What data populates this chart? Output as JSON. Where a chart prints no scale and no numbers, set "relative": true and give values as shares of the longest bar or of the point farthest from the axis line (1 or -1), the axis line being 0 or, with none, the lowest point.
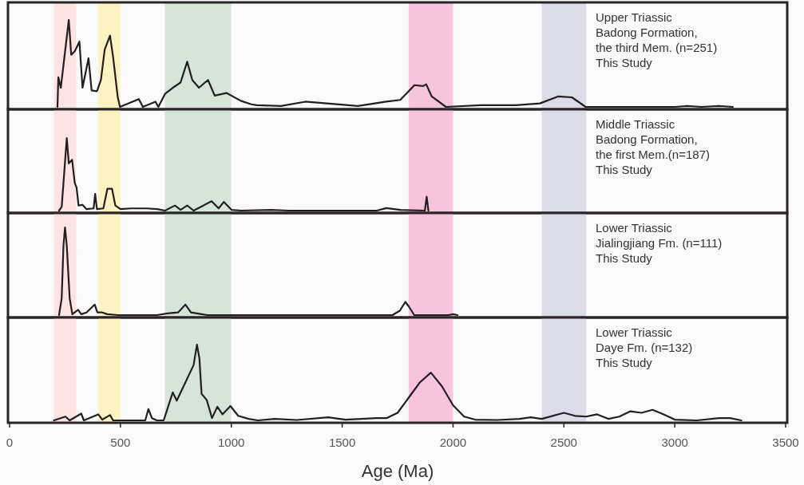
{
  "chart_data": [
    {
      "type": "line",
      "relative": true,
      "xlim": [
        0,
        3500
      ],
      "tick_labels": false,
      "annotations": [
        "Upper Triassic\nBadong Formation,\nthe third Mem. (n=251)\nThis Study"
      ],
      "bands": [
        {
          "axis": "x",
          "from": 200,
          "to": 300,
          "color": "#fde3e3"
        },
        {
          "axis": "x",
          "from": 400,
          "to": 500,
          "color": "#fdf3c2"
        },
        {
          "axis": "x",
          "from": 700,
          "to": 1000,
          "color": "#d5e5da"
        },
        {
          "axis": "x",
          "from": 1800,
          "to": 2000,
          "color": "#f8c3dc"
        },
        {
          "axis": "x",
          "from": 2400,
          "to": 2600,
          "color": "#dcdbe8"
        }
      ],
      "series": [
        {
          "color": "#231f20",
          "x": [
            216,
            220,
            231,
            267,
            278,
            294,
            315,
            329,
            356,
            370,
            394,
            412,
            429,
            453,
            467,
            488,
            498,
            583,
            601,
            658,
            671,
            701,
            736,
            771,
            801,
            824,
            854,
            895,
            925,
            978,
            1043,
            1090,
            1115,
            1224,
            1334,
            1571,
            1699,
            1762,
            1826,
            1865,
            1879,
            1904,
            1968,
            2125,
            2283,
            2392,
            2473,
            2536,
            2598,
            3000,
            3057,
            3120,
            3199,
            3262
          ],
          "values": [
            0,
            0.34,
            0.22,
            1.0,
            0.6,
            0.64,
            0.75,
            0.22,
            0.56,
            0.19,
            0.18,
            0.31,
            0.66,
            0.82,
            0.57,
            0.11,
            0,
            0.09,
            0,
            0.06,
            0,
            0.15,
            0.22,
            0.28,
            0.52,
            0.31,
            0.22,
            0.31,
            0.13,
            0.16,
            0.07,
            0.03,
            0.02,
            0.01,
            0.06,
            0.01,
            0.06,
            0.08,
            0.25,
            0.24,
            0.26,
            0.12,
            0,
            0.02,
            0.02,
            0.04,
            0.12,
            0.11,
            0,
            0,
            0.01,
            0,
            0.01,
            0
          ]
        }
      ]
    },
    {
      "type": "line",
      "relative": true,
      "xlim": [
        0,
        3500
      ],
      "tick_labels": false,
      "annotations": [
        "Middle Triassic\nBadong Formation,\nthe first Mem.(n=187)\nThis Study"
      ],
      "bands": [
        {
          "axis": "x",
          "from": 200,
          "to": 300,
          "color": "#fde3e3"
        },
        {
          "axis": "x",
          "from": 400,
          "to": 500,
          "color": "#fdf3c2"
        },
        {
          "axis": "x",
          "from": 700,
          "to": 1000,
          "color": "#d5e5da"
        },
        {
          "axis": "x",
          "from": 1800,
          "to": 2000,
          "color": "#f8c3dc"
        },
        {
          "axis": "x",
          "from": 2400,
          "to": 2600,
          "color": "#dcdbe8"
        }
      ],
      "series": [
        {
          "color": "#231f20",
          "x": [
            223,
            235,
            250,
            258,
            267,
            282,
            294,
            302,
            311,
            329,
            347,
            379,
            386,
            394,
            423,
            441,
            462,
            477,
            500,
            547,
            618,
            665,
            701,
            746,
            771,
            801,
            830,
            911,
            943,
            966,
            1001,
            1043,
            1178,
            1258,
            1656,
            1699,
            1762,
            1873,
            1881,
            1889
          ],
          "values": [
            0,
            0.05,
            0.67,
            1.0,
            0.65,
            0.7,
            0.38,
            0.32,
            0.07,
            0.08,
            0.02,
            0.03,
            0.23,
            0.02,
            0.03,
            0.3,
            0.3,
            0.07,
            0.02,
            0.03,
            0.03,
            0.02,
            0,
            0.07,
            0.01,
            0.07,
            0,
            0.13,
            0.03,
            0.12,
            0.01,
            0,
            0.01,
            0,
            0,
            0.035,
            0.01,
            0,
            0.19,
            0
          ]
        }
      ]
    },
    {
      "type": "line",
      "relative": true,
      "xlim": [
        0,
        3500
      ],
      "tick_labels": false,
      "annotations": [
        "Lower Triassic\nJialingjiang Fm. (n=111)\nThis Study"
      ],
      "bands": [
        {
          "axis": "x",
          "from": 200,
          "to": 300,
          "color": "#fde3e3"
        },
        {
          "axis": "x",
          "from": 400,
          "to": 500,
          "color": "#fdf3c2"
        },
        {
          "axis": "x",
          "from": 700,
          "to": 1000,
          "color": "#d5e5da"
        },
        {
          "axis": "x",
          "from": 1800,
          "to": 2000,
          "color": "#f8c3dc"
        },
        {
          "axis": "x",
          "from": 2400,
          "to": 2600,
          "color": "#dcdbe8"
        }
      ],
      "series": [
        {
          "color": "#231f20",
          "x": [
            223,
            235,
            243,
            250,
            258,
            271,
            283,
            309,
            323,
            347,
            384,
            396,
            418,
            441,
            488,
            665,
            712,
            760,
            793,
            818,
            866,
            892,
            1727,
            1760,
            1785,
            1800,
            1825,
            1980,
            2000,
            2020
          ],
          "values": [
            0,
            0.19,
            0.79,
            1.0,
            0.79,
            0.19,
            0.01,
            0.06,
            0.01,
            0.03,
            0.12,
            0.03,
            0.03,
            0.01,
            0,
            0,
            0.02,
            0.03,
            0.12,
            0.03,
            0.01,
            0,
            0,
            0.05,
            0.15,
            0.1,
            0,
            0,
            0.01,
            0
          ]
        }
      ]
    },
    {
      "type": "line",
      "relative": true,
      "xlim": [
        0,
        3500
      ],
      "tick_labels": "x",
      "xticks": [
        0,
        500,
        1000,
        1500,
        2000,
        2500,
        3000,
        3500
      ],
      "xlabel": "Age (Ma)",
      "annotations": [
        "Lower Triassic\nDaye Fm. (n=132)\nThis Study"
      ],
      "bands": [
        {
          "axis": "x",
          "from": 200,
          "to": 300,
          "color": "#fde3e3"
        },
        {
          "axis": "x",
          "from": 400,
          "to": 500,
          "color": "#fdf3c2"
        },
        {
          "axis": "x",
          "from": 700,
          "to": 1000,
          "color": "#d5e5da"
        },
        {
          "axis": "x",
          "from": 1800,
          "to": 2000,
          "color": "#f8c3dc"
        },
        {
          "axis": "x",
          "from": 2400,
          "to": 2600,
          "color": "#dcdbe8"
        }
      ],
      "series": [
        {
          "color": "#231f20",
          "x": [
            200,
            252,
            271,
            323,
            335,
            400,
            418,
            453,
            467,
            612,
            626,
            642,
            665,
            695,
            736,
            754,
            830,
            845,
            856,
            866,
            889,
            913,
            937,
            960,
            996,
            1031,
            1078,
            1120,
            1196,
            1295,
            1437,
            1515,
            1656,
            1700,
            1750,
            1800,
            1850,
            1900,
            1950,
            2000,
            2050,
            2100,
            2200,
            2300,
            2350,
            2400,
            2500,
            2550,
            2600,
            2650,
            2700,
            2750,
            2800,
            2850,
            2900,
            2950,
            3000,
            3100,
            3200,
            3250,
            3300
          ],
          "values": [
            0,
            0.05,
            0,
            0.09,
            0,
            0.08,
            0.01,
            0.07,
            0,
            0,
            0.15,
            0.03,
            0,
            0,
            0.37,
            0.26,
            0.73,
            1.0,
            0.82,
            0.35,
            0.27,
            0.03,
            0.18,
            0.08,
            0.19,
            0.06,
            0.02,
            0,
            0.02,
            0.005,
            0.04,
            0.01,
            0.03,
            0.03,
            0.1,
            0.3,
            0.5,
            0.63,
            0.45,
            0.2,
            0.05,
            0.01,
            0.005,
            0.02,
            0.04,
            0.02,
            0.1,
            0.06,
            0.05,
            0.08,
            0.02,
            0.05,
            0.12,
            0.1,
            0.14,
            0.08,
            0.01,
            0,
            0.03,
            0.03,
            0
          ]
        }
      ]
    }
  ]
}
